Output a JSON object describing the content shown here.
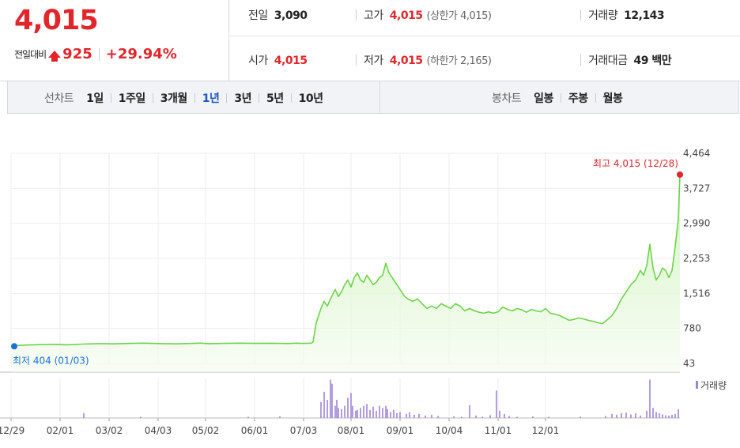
{
  "summary": {
    "price": "4,015",
    "change_label": "전일대비",
    "change_value": "925",
    "change_percent": "+29.94%",
    "up_color": "#e0262b"
  },
  "info": {
    "prev_close_label": "전일",
    "prev_close": "3,090",
    "open_label": "시가",
    "open": "4,015",
    "high_label": "고가",
    "high": "4,015",
    "upper_limit": "(상한가 4,015)",
    "low_label": "저가",
    "low": "4,015",
    "lower_limit": "(하한가 2,165)",
    "volume_label": "거래량",
    "volume": "12,143",
    "amount_label": "거래대금",
    "amount": "49 백만"
  },
  "tabs": {
    "line_chart_label": "선차트",
    "line_periods": [
      "1일",
      "1주일",
      "3개월",
      "1년",
      "3년",
      "5년",
      "10년"
    ],
    "selected_period": "1년",
    "candle_chart_label": "봉차트",
    "candle_periods": [
      "일봉",
      "주봉",
      "월봉"
    ],
    "selected_color": "#1b54c2"
  },
  "chart_data": {
    "type": "area",
    "price_line_color": "#6cd34a",
    "volume_bar_color": "#9f83d6",
    "x_ticks": [
      "12/29",
      "02/01",
      "03/02",
      "04/03",
      "05/02",
      "06/01",
      "07/03",
      "08/01",
      "09/01",
      "10/04",
      "11/01",
      "12/01"
    ],
    "y_ticks": [
      "4,464",
      "3,727",
      "2,990",
      "2,253",
      "1,516",
      "780",
      "43"
    ],
    "ylim": [
      43,
      4464
    ],
    "grid": true,
    "max_annotation": "최고 4,015 (12/28)",
    "min_annotation": "최저 404 (01/03)",
    "volume_legend": "거래량",
    "price_series": [
      [
        0,
        404
      ],
      [
        3,
        420
      ],
      [
        10,
        430
      ],
      [
        20,
        440
      ],
      [
        30,
        445
      ],
      [
        35,
        435
      ],
      [
        45,
        450
      ],
      [
        55,
        460
      ],
      [
        65,
        455
      ],
      [
        75,
        465
      ],
      [
        85,
        470
      ],
      [
        95,
        460
      ],
      [
        105,
        455
      ],
      [
        115,
        465
      ],
      [
        120,
        470
      ],
      [
        125,
        460
      ],
      [
        135,
        465
      ],
      [
        145,
        470
      ],
      [
        155,
        465
      ],
      [
        165,
        468
      ],
      [
        175,
        462
      ],
      [
        180,
        470
      ],
      [
        185,
        465
      ],
      [
        190,
        470
      ],
      [
        191,
        500
      ],
      [
        193,
        900
      ],
      [
        196,
        1200
      ],
      [
        198,
        1350
      ],
      [
        200,
        1250
      ],
      [
        202,
        1400
      ],
      [
        205,
        1600
      ],
      [
        207,
        1450
      ],
      [
        209,
        1550
      ],
      [
        211,
        1700
      ],
      [
        213,
        1800
      ],
      [
        215,
        1650
      ],
      [
        217,
        1850
      ],
      [
        219,
        1950
      ],
      [
        221,
        1800
      ],
      [
        223,
        1750
      ],
      [
        225,
        1900
      ],
      [
        227,
        1800
      ],
      [
        229,
        1700
      ],
      [
        231,
        1750
      ],
      [
        233,
        1850
      ],
      [
        235,
        1900
      ],
      [
        237,
        2150
      ],
      [
        239,
        1950
      ],
      [
        241,
        1850
      ],
      [
        243,
        1750
      ],
      [
        245,
        1650
      ],
      [
        247,
        1550
      ],
      [
        249,
        1450
      ],
      [
        251,
        1400
      ],
      [
        254,
        1350
      ],
      [
        257,
        1400
      ],
      [
        260,
        1300
      ],
      [
        263,
        1200
      ],
      [
        266,
        1250
      ],
      [
        269,
        1200
      ],
      [
        272,
        1300
      ],
      [
        275,
        1250
      ],
      [
        278,
        1200
      ],
      [
        281,
        1300
      ],
      [
        284,
        1250
      ],
      [
        287,
        1150
      ],
      [
        290,
        1200
      ],
      [
        293,
        1150
      ],
      [
        296,
        1120
      ],
      [
        299,
        1100
      ],
      [
        302,
        1130
      ],
      [
        305,
        1100
      ],
      [
        308,
        1130
      ],
      [
        311,
        1230
      ],
      [
        314,
        1180
      ],
      [
        317,
        1150
      ],
      [
        320,
        1200
      ],
      [
        323,
        1170
      ],
      [
        326,
        1120
      ],
      [
        329,
        1180
      ],
      [
        332,
        1150
      ],
      [
        335,
        1130
      ],
      [
        338,
        1200
      ],
      [
        341,
        1100
      ],
      [
        344,
        1080
      ],
      [
        347,
        1050
      ],
      [
        350,
        1000
      ],
      [
        353,
        950
      ],
      [
        356,
        970
      ],
      [
        359,
        1000
      ],
      [
        362,
        980
      ],
      [
        365,
        950
      ],
      [
        368,
        930
      ],
      [
        371,
        900
      ],
      [
        374,
        880
      ],
      [
        377,
        960
      ],
      [
        380,
        1050
      ],
      [
        383,
        1200
      ],
      [
        386,
        1400
      ],
      [
        389,
        1550
      ],
      [
        392,
        1700
      ],
      [
        395,
        1800
      ],
      [
        398,
        2000
      ],
      [
        400,
        1900
      ],
      [
        402,
        2100
      ],
      [
        404,
        2550
      ],
      [
        406,
        2050
      ],
      [
        408,
        1800
      ],
      [
        410,
        1900
      ],
      [
        412,
        2050
      ],
      [
        414,
        2000
      ],
      [
        416,
        1850
      ],
      [
        418,
        2000
      ],
      [
        420,
        2500
      ],
      [
        422,
        3090
      ],
      [
        423,
        4015
      ]
    ],
    "volume_series": [
      [
        46,
        0.12
      ],
      [
        82,
        0.03
      ],
      [
        150,
        0.03
      ],
      [
        170,
        0.04
      ],
      [
        196,
        0.4
      ],
      [
        198,
        0.65
      ],
      [
        200,
        0.45
      ],
      [
        202,
        0.95
      ],
      [
        203,
        0.85
      ],
      [
        205,
        0.3
      ],
      [
        206,
        0.45
      ],
      [
        207,
        0.25
      ],
      [
        209,
        0.22
      ],
      [
        211,
        0.3
      ],
      [
        213,
        0.5
      ],
      [
        215,
        0.62
      ],
      [
        216,
        0.3
      ],
      [
        218,
        0.18
      ],
      [
        219,
        0.2
      ],
      [
        221,
        0.25
      ],
      [
        223,
        0.3
      ],
      [
        225,
        0.35
      ],
      [
        227,
        0.2
      ],
      [
        229,
        0.28
      ],
      [
        231,
        0.18
      ],
      [
        233,
        0.3
      ],
      [
        235,
        0.25
      ],
      [
        237,
        0.3
      ],
      [
        238,
        0.22
      ],
      [
        240,
        0.15
      ],
      [
        242,
        0.2
      ],
      [
        244,
        0.12
      ],
      [
        246,
        0.15
      ],
      [
        250,
        0.1
      ],
      [
        252,
        0.14
      ],
      [
        255,
        0.08
      ],
      [
        258,
        0.1
      ],
      [
        262,
        0.06
      ],
      [
        266,
        0.08
      ],
      [
        270,
        0.05
      ],
      [
        280,
        0.04
      ],
      [
        285,
        0.03
      ],
      [
        290,
        0.32
      ],
      [
        294,
        0.06
      ],
      [
        298,
        0.03
      ],
      [
        303,
        0.07
      ],
      [
        307,
        0.68
      ],
      [
        309,
        0.18
      ],
      [
        312,
        0.1
      ],
      [
        315,
        0.05
      ],
      [
        320,
        0.03
      ],
      [
        330,
        0.04
      ],
      [
        340,
        0.03
      ],
      [
        360,
        0.03
      ],
      [
        376,
        0.05
      ],
      [
        380,
        0.1
      ],
      [
        383,
        0.08
      ],
      [
        386,
        0.12
      ],
      [
        389,
        0.13
      ],
      [
        392,
        0.09
      ],
      [
        395,
        0.12
      ],
      [
        398,
        0.06
      ],
      [
        402,
        0.18
      ],
      [
        404,
        0.95
      ],
      [
        406,
        0.25
      ],
      [
        408,
        0.15
      ],
      [
        410,
        0.12
      ],
      [
        412,
        0.09
      ],
      [
        414,
        0.07
      ],
      [
        416,
        0.06
      ],
      [
        418,
        0.08
      ],
      [
        420,
        0.1
      ],
      [
        422,
        0.22
      ]
    ]
  }
}
